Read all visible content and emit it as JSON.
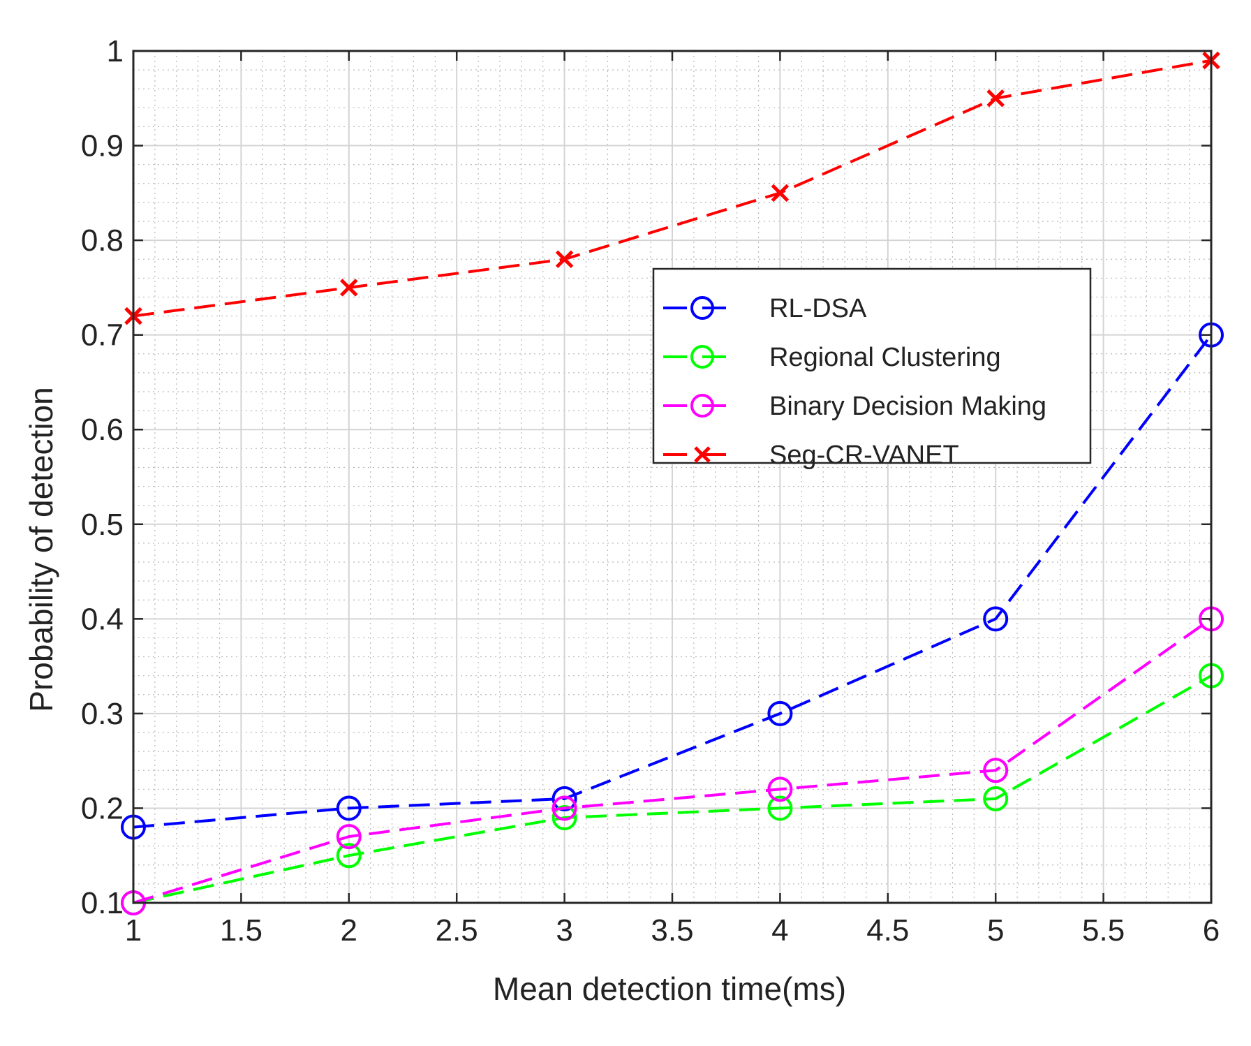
{
  "chart_data": {
    "type": "line",
    "title": "",
    "xlabel": "Mean detection time(ms)",
    "ylabel": "Probability of detection",
    "xlim": [
      1,
      6
    ],
    "ylim": [
      0.1,
      1
    ],
    "x": [
      1,
      2,
      3,
      4,
      5,
      6
    ],
    "xticks": [
      "1",
      "1.5",
      "2",
      "2.5",
      "3",
      "3.5",
      "4",
      "4.5",
      "5",
      "5.5",
      "6"
    ],
    "yticks": [
      "0.1",
      "0.2",
      "0.3",
      "0.4",
      "0.5",
      "0.6",
      "0.7",
      "0.8",
      "0.9",
      "1"
    ],
    "grid": true,
    "minor_grid": true,
    "legend_position": "center-right",
    "series": [
      {
        "name": "RL-DSA",
        "color": "#0000ff",
        "marker": "circle",
        "values": [
          0.18,
          0.2,
          0.21,
          0.3,
          0.4,
          0.7
        ]
      },
      {
        "name": "Regional Clustering",
        "color": "#00ff00",
        "marker": "circle",
        "values": [
          0.1,
          0.15,
          0.19,
          0.2,
          0.21,
          0.34
        ]
      },
      {
        "name": "Binary Decision Making",
        "color": "#ff00ff",
        "marker": "circle",
        "values": [
          0.1,
          0.17,
          0.2,
          0.22,
          0.24,
          0.4
        ]
      },
      {
        "name": "Seg-CR-VANET",
        "color": "#ff0000",
        "marker": "x",
        "values": [
          0.72,
          0.75,
          0.78,
          0.85,
          0.95,
          0.99
        ]
      }
    ]
  }
}
